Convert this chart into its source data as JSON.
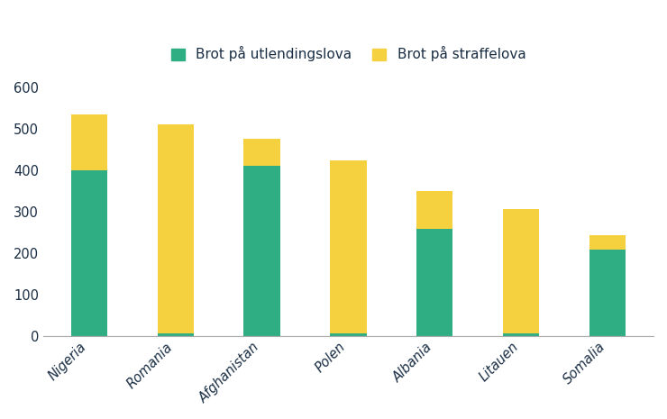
{
  "categories": [
    "Nigeria",
    "Romania",
    "Afghanistan",
    "Polen",
    "Albania",
    "Litauen",
    "Somalia"
  ],
  "green_values": [
    400,
    5,
    410,
    5,
    258,
    5,
    207
  ],
  "yellow_values": [
    133,
    505,
    65,
    418,
    90,
    300,
    35
  ],
  "green_color": "#2EAE82",
  "yellow_color": "#F5D140",
  "legend_green": "Brot på utlendingslova",
  "legend_yellow": "Brot på straffelova",
  "ylim": [
    0,
    650
  ],
  "yticks": [
    0,
    100,
    200,
    300,
    400,
    500,
    600
  ],
  "bar_width": 0.42,
  "background_color": "#ffffff",
  "tick_label_fontsize": 10.5,
  "legend_fontsize": 11,
  "xlabel_rotation": 45,
  "text_color": "#1a2e44"
}
